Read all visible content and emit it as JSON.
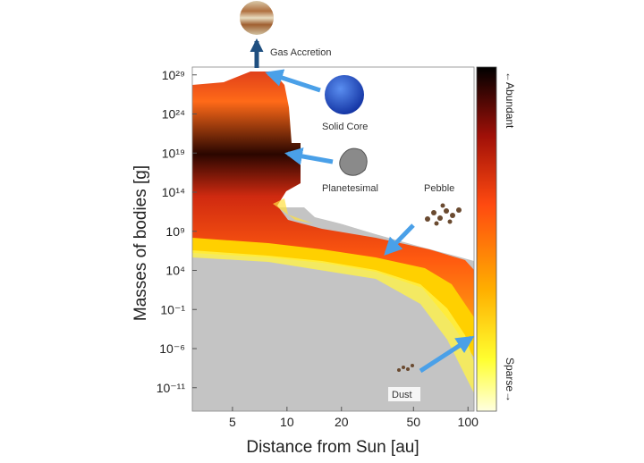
{
  "chart_data": {
    "type": "heatmap",
    "xlabel": "Distance from Sun [au]",
    "ylabel": "Masses of bodies  [g]",
    "xscale": "log",
    "yscale": "log",
    "xlim": [
      3,
      108
    ],
    "ylim": [
      1e-14,
      1e+30
    ],
    "xticks": [
      5,
      10,
      20,
      50,
      100
    ],
    "yticks": [
      {
        "value": 1e+29,
        "label": "10²⁹"
      },
      {
        "value": 1e+24,
        "label": "10²⁴"
      },
      {
        "value": 1e+19,
        "label": "10¹⁹"
      },
      {
        "value": 100000000000000.0,
        "label": "10¹⁴"
      },
      {
        "value": 1000000000.0,
        "label": "10⁹"
      },
      {
        "value": 10000.0,
        "label": "10⁴"
      },
      {
        "value": 0.1,
        "label": "10⁻¹"
      },
      {
        "value": 1e-06,
        "label": "10⁻⁶"
      },
      {
        "value": 1e-11,
        "label": "10⁻¹¹"
      }
    ],
    "colorbar": {
      "top_label": "←Abundant",
      "bottom_label": "Sparse→"
    },
    "annotations": [
      "Gas Accretion",
      "Solid Core",
      "Planetesimal",
      "Pebble",
      "Dust"
    ]
  }
}
